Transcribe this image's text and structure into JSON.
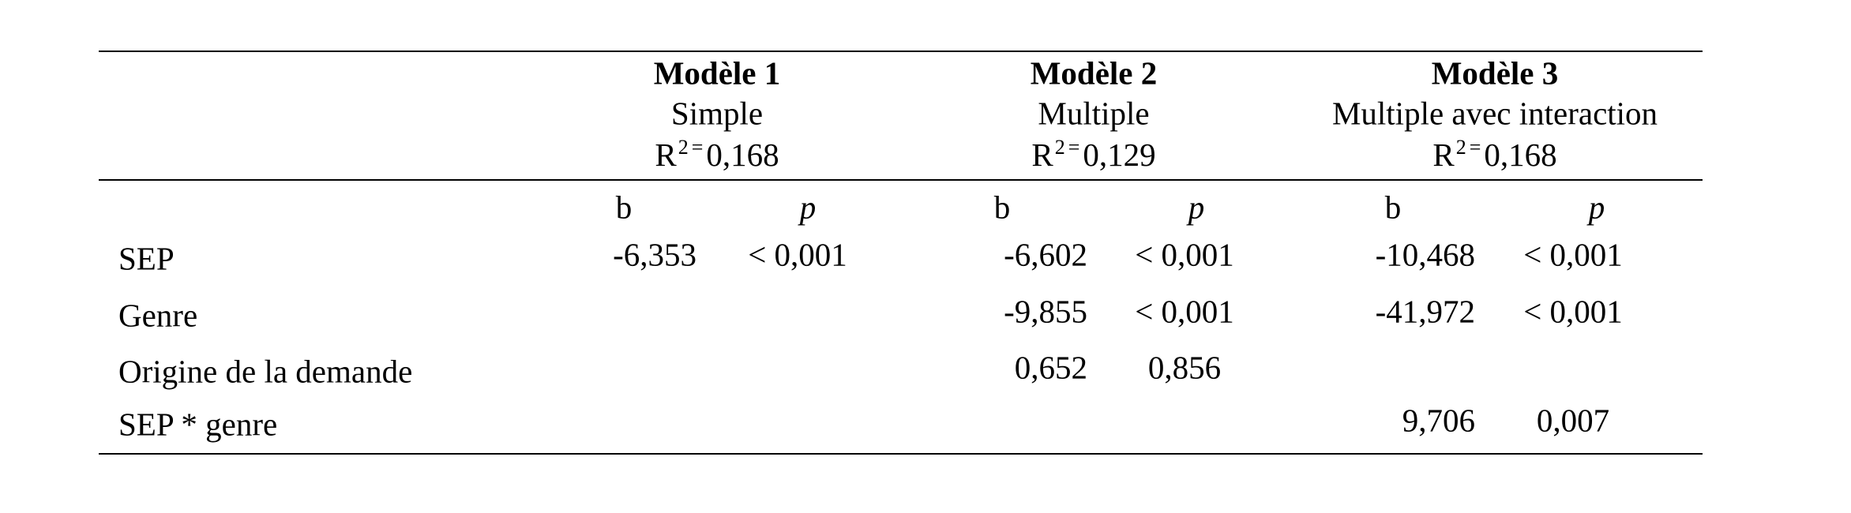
{
  "table": {
    "models": [
      {
        "title": "Modèle 1",
        "subtitle": "Simple",
        "r2_symbol": "R",
        "r2_exponent": "2",
        "r2_equals": "=",
        "r2_value": "0,168",
        "columns": [
          "b",
          "p"
        ]
      },
      {
        "title": "Modèle 2",
        "subtitle": "Multiple",
        "r2_symbol": "R",
        "r2_exponent": "2",
        "r2_equals": "=",
        "r2_value": "0,129",
        "columns": [
          "b",
          "p"
        ]
      },
      {
        "title": "Modèle 3",
        "subtitle": "Multiple avec interaction",
        "r2_symbol": "R",
        "r2_exponent": "2",
        "r2_equals": "=",
        "r2_value": "0,168",
        "columns": [
          "b",
          "p"
        ]
      }
    ],
    "rows": [
      {
        "label": "SEP",
        "cells": [
          "-6,353",
          "< 0,001",
          "-6,602",
          "< 0,001",
          "-10,468",
          "< 0,001"
        ]
      },
      {
        "label": "Genre",
        "cells": [
          null,
          null,
          "-9,855",
          "< 0,001",
          "-41,972",
          "< 0,001"
        ]
      },
      {
        "label": "Origine de la demande",
        "cells": [
          null,
          null,
          "0,652",
          "0,856",
          null,
          null
        ]
      },
      {
        "label": "SEP * genre",
        "cells": [
          null,
          null,
          null,
          null,
          "9,706",
          "0,007"
        ]
      }
    ]
  }
}
